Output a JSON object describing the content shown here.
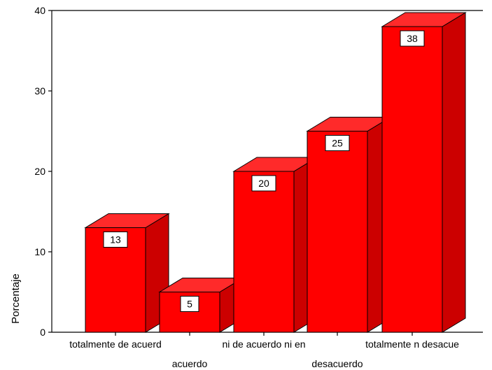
{
  "chart_data": {
    "type": "bar",
    "categories": [
      "totalmente de acuerd",
      "acuerdo",
      "ni de acuerdo ni en",
      "desacuerdo",
      "totalmente n desacue"
    ],
    "values": [
      13,
      5,
      20,
      25,
      38
    ],
    "data_labels": [
      "13",
      "5",
      "20",
      "25",
      "38"
    ],
    "ylabel": "Porcentaje",
    "xlabel": "",
    "ylim": [
      0,
      40
    ],
    "yticks": [
      "0",
      "10",
      "20",
      "30",
      "40"
    ],
    "grid": false,
    "bar_style": "3d",
    "colors": {
      "bar_front": "#ff0000",
      "bar_side": "#cc0000",
      "bar_top": "#ff2a2a",
      "outline": "#000000"
    }
  }
}
